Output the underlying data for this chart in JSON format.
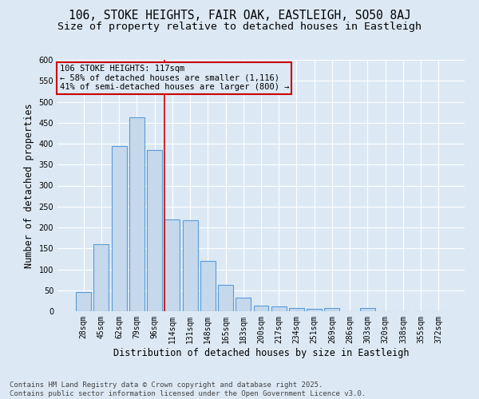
{
  "title_line1": "106, STOKE HEIGHTS, FAIR OAK, EASTLEIGH, SO50 8AJ",
  "title_line2": "Size of property relative to detached houses in Eastleigh",
  "xlabel": "Distribution of detached houses by size in Eastleigh",
  "ylabel": "Number of detached properties",
  "categories": [
    "28sqm",
    "45sqm",
    "62sqm",
    "79sqm",
    "96sqm",
    "114sqm",
    "131sqm",
    "148sqm",
    "165sqm",
    "183sqm",
    "200sqm",
    "217sqm",
    "234sqm",
    "251sqm",
    "269sqm",
    "286sqm",
    "303sqm",
    "320sqm",
    "338sqm",
    "355sqm",
    "372sqm"
  ],
  "values": [
    45,
    160,
    395,
    462,
    385,
    220,
    218,
    120,
    63,
    33,
    13,
    12,
    8,
    5,
    7,
    0,
    7,
    0,
    0,
    0,
    0
  ],
  "bar_color": "#c5d8ec",
  "bar_edge_color": "#5b9bd5",
  "background_color": "#dce9f5",
  "grid_color": "#ffffff",
  "vline_x": 4.575,
  "vline_color": "#cc0000",
  "annotation_text": "106 STOKE HEIGHTS: 117sqm\n← 58% of detached houses are smaller (1,116)\n41% of semi-detached houses are larger (800) →",
  "annotation_box_color": "#cc0000",
  "ylim": [
    0,
    600
  ],
  "yticks": [
    0,
    50,
    100,
    150,
    200,
    250,
    300,
    350,
    400,
    450,
    500,
    550,
    600
  ],
  "footer_line1": "Contains HM Land Registry data © Crown copyright and database right 2025.",
  "footer_line2": "Contains public sector information licensed under the Open Government Licence v3.0.",
  "title_fontsize": 10.5,
  "subtitle_fontsize": 9.5,
  "axis_label_fontsize": 8.5,
  "tick_fontsize": 7,
  "annotation_fontsize": 7.5,
  "footer_fontsize": 6.5
}
